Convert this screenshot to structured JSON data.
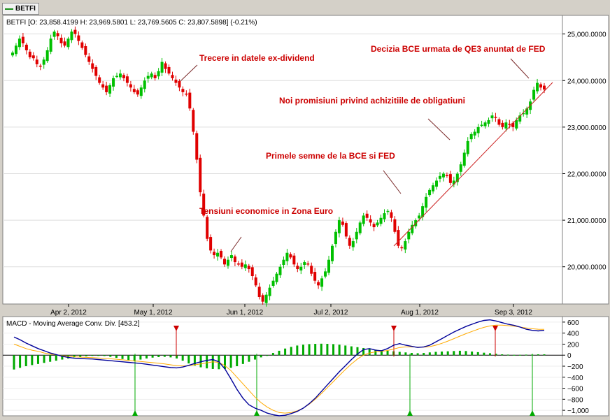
{
  "tab": {
    "label": "BETFI"
  },
  "colors": {
    "up": "#00c000",
    "down": "#e00000",
    "ann": "#cc0000",
    "trend": "#cc2222",
    "macd": "#000099",
    "signal": "#ffaa00",
    "hist": "#00aa00",
    "grid": "#dddddd",
    "axis": "#000000"
  },
  "chart_data": [
    {
      "type": "candlestick",
      "header": "BETFI [O: 23,858.4199  H: 23,969.5801  L: 23,769.5605  C: 23,807.5898] (-0.21%)",
      "ylim": [
        19200,
        25400
      ],
      "yticks": [
        20000,
        21000,
        22000,
        23000,
        24000,
        25000
      ],
      "ytick_labels": [
        "20,000.0000",
        "21,000.0000",
        "22,000.0000",
        "23,000.0000",
        "24,000.0000",
        "25,000.0000"
      ],
      "xticks": [
        "Apr 2, 2012",
        "May 1, 2012",
        "Jun 1, 2012",
        "Jul 2, 2012",
        "Aug 1, 2012",
        "Sep 3, 2012"
      ],
      "closes": [
        24600,
        24750,
        24900,
        24800,
        24650,
        24500,
        24480,
        24350,
        24300,
        24450,
        24650,
        24900,
        25050,
        24950,
        24800,
        24750,
        24900,
        25050,
        25000,
        24850,
        24700,
        24550,
        24400,
        24250,
        24100,
        23950,
        23850,
        23750,
        23900,
        24050,
        24100,
        24150,
        24050,
        23950,
        23850,
        23750,
        23700,
        23850,
        24000,
        24100,
        24150,
        24050,
        24200,
        24400,
        24250,
        24150,
        24050,
        23950,
        23850,
        23750,
        23700,
        23400,
        22900,
        22300,
        21600,
        21100,
        20600,
        20350,
        20250,
        20300,
        20200,
        20050,
        20150,
        20250,
        20100,
        20050,
        20000,
        20050,
        19950,
        19800,
        19600,
        19350,
        19250,
        19400,
        19550,
        19700,
        19850,
        20000,
        20150,
        20300,
        20200,
        20050,
        19950,
        20000,
        20100,
        20050,
        19850,
        19700,
        19600,
        19750,
        19900,
        20150,
        20450,
        20750,
        21000,
        20900,
        20650,
        20450,
        20550,
        20750,
        20950,
        21100,
        21050,
        20950,
        20850,
        20950,
        21050,
        21150,
        21200,
        21050,
        20750,
        20450,
        20400,
        20550,
        20750,
        20900,
        21000,
        21100,
        21300,
        21500,
        21650,
        21750,
        21850,
        21950,
        22000,
        21950,
        21800,
        21850,
        22000,
        22200,
        22450,
        22700,
        22850,
        22900,
        23000,
        23050,
        23100,
        23150,
        23250,
        23200,
        23050,
        23000,
        23100,
        23050,
        23000,
        23150,
        23250,
        23300,
        23400,
        23550,
        23800,
        23950,
        23850,
        23807.59
      ],
      "annotations": [
        "Trecere in datele ex-dividend",
        "Tensiuni economice in Zona Euro",
        "Primele semne de la BCE si FED",
        "Noi promisiuni privind achizitiile de obligatiuni",
        "Decizia BCE urmata de QE3 anuntat de FED"
      ]
    },
    {
      "type": "line",
      "title": "MACD - Moving Average Conv. Div. [453.2]",
      "ylim": [
        -1100,
        700
      ],
      "yticks": [
        600,
        400,
        200,
        0,
        -200,
        -400,
        -600,
        -800,
        -1000
      ],
      "ytick_labels": [
        "600",
        "400",
        "200",
        "0",
        "−200",
        "−400",
        "−600",
        "−800",
        "−1,000"
      ],
      "series": [
        {
          "values": [
            330,
            280,
            220,
            170,
            120,
            80,
            40,
            10,
            -20,
            -40,
            -55,
            -60,
            -65,
            -70,
            -80,
            -90,
            -100,
            -110,
            -120,
            -130,
            -140,
            -150,
            -165,
            -180,
            -195,
            -210,
            -225,
            -230,
            -215,
            -185,
            -150,
            -120,
            -95,
            -80,
            -120,
            -250,
            -430,
            -620,
            -780,
            -900,
            -960,
            -1000,
            -1050,
            -1080,
            -1100,
            -1090,
            -1060,
            -1020,
            -960,
            -880,
            -780,
            -660,
            -540,
            -420,
            -300,
            -190,
            -80,
            20,
            100,
            120,
            90,
            80,
            120,
            180,
            210,
            180,
            160,
            140,
            150,
            180,
            240,
            300,
            360,
            420,
            470,
            520,
            560,
            600,
            630,
            640,
            620,
            590,
            560,
            540,
            510,
            470,
            450,
            440,
            450
          ]
        },
        {
          "values": [
            200,
            160,
            120,
            90,
            70,
            40,
            20,
            5,
            -10,
            -20,
            -30,
            -35,
            -40,
            -45,
            -50,
            -58,
            -66,
            -75,
            -85,
            -95,
            -105,
            -115,
            -125,
            -135,
            -145,
            -160,
            -175,
            -190,
            -195,
            -190,
            -175,
            -160,
            -140,
            -120,
            -130,
            -190,
            -280,
            -400,
            -520,
            -640,
            -760,
            -860,
            -940,
            -1000,
            -1040,
            -1050,
            -1040,
            -1010,
            -960,
            -890,
            -800,
            -700,
            -590,
            -480,
            -370,
            -260,
            -160,
            -70,
            0,
            40,
            60,
            70,
            85,
            110,
            140,
            150,
            150,
            145,
            145,
            155,
            180,
            215,
            255,
            300,
            345,
            390,
            430,
            470,
            505,
            530,
            545,
            545,
            535,
            525,
            510,
            495,
            480,
            470,
            468
          ]
        },
        {
          "values": [
            -260,
            -230,
            -200,
            -180,
            -160,
            -140,
            -120,
            -100,
            -80,
            -60,
            -40,
            -30,
            -20,
            -10,
            -5,
            -15,
            -30,
            -50,
            -70,
            -90,
            -100,
            -80,
            -60,
            -45,
            -35,
            -30,
            -40,
            -60,
            -100,
            -150,
            -190,
            -220,
            -240,
            -250,
            -255,
            -250,
            -230,
            -200,
            -160,
            -120,
            -80,
            -40,
            0,
            40,
            80,
            120,
            150,
            175,
            190,
            200,
            205,
            208,
            205,
            200,
            190,
            175,
            160,
            145,
            130,
            115,
            100,
            90,
            80,
            70,
            60,
            50,
            40,
            35,
            40,
            50,
            60,
            65,
            70,
            75,
            80,
            75,
            65,
            55,
            45,
            35,
            25,
            15,
            10,
            5,
            5,
            10,
            10,
            15,
            15
          ]
        }
      ]
    }
  ]
}
